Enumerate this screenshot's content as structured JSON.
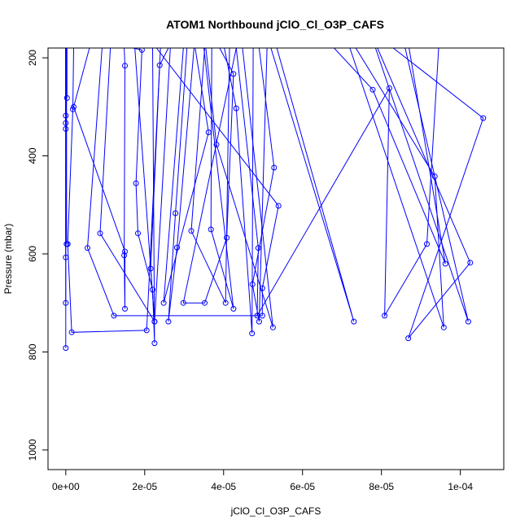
{
  "chart_data": {
    "type": "line",
    "title": "ATOM1 Northbound jClO_Cl_O3P_CAFS",
    "xlabel": "jClO_Cl_O3P_CAFS",
    "ylabel": "Pressure (mbar)",
    "xlim": [
      -4.5e-06,
      0.000111
    ],
    "ylim": [
      1040,
      180
    ],
    "y_reversed": true,
    "grid": false,
    "legend": "none",
    "line_color": "#0000ff",
    "x_ticks": [
      {
        "value": 0,
        "label": "0e+00"
      },
      {
        "value": 2e-05,
        "label": "2e-05"
      },
      {
        "value": 4e-05,
        "label": "4e-05"
      },
      {
        "value": 6e-05,
        "label": "6e-05"
      },
      {
        "value": 8e-05,
        "label": "8e-05"
      },
      {
        "value": 0.0001,
        "label": "1e-04"
      }
    ],
    "y_ticks": [
      {
        "value": 200,
        "label": "200"
      },
      {
        "value": 400,
        "label": "400"
      },
      {
        "value": 600,
        "label": "600"
      },
      {
        "value": 800,
        "label": "800"
      },
      {
        "value": 1000,
        "label": "1000"
      }
    ],
    "series": [
      {
        "points": [
          [
            0,
            180
          ],
          [
            0,
            792
          ]
        ]
      },
      {
        "points": [
          [
            0,
            180
          ],
          [
            0,
            700
          ]
        ]
      },
      {
        "points": [
          [
            0,
            180
          ],
          [
            0,
            607
          ]
        ]
      },
      {
        "points": [
          [
            2e-07,
            180
          ],
          [
            2e-07,
            580
          ]
        ]
      },
      {
        "points": [
          [
            3e-07,
            180
          ],
          [
            3e-07,
            282
          ]
        ]
      },
      {
        "points": [
          [
            0,
            180
          ],
          [
            0,
            318
          ]
        ]
      },
      {
        "points": [
          [
            0,
            180
          ],
          [
            0,
            333
          ]
        ]
      },
      {
        "points": [
          [
            0,
            180
          ],
          [
            0,
            345
          ]
        ]
      },
      {
        "points": [
          [
            2e-06,
            180
          ],
          [
            1.8e-06,
            305
          ],
          [
            5e-07,
            580
          ],
          [
            1.5e-06,
            760
          ],
          [
            2.05e-05,
            756
          ],
          [
            2.4e-05,
            180
          ]
        ]
      },
      {
        "points": [
          [
            9.2e-06,
            180
          ],
          [
            5.5e-06,
            588
          ],
          [
            1.22e-05,
            726
          ],
          [
            4.98e-05,
            726
          ],
          [
            4.98e-05,
            670
          ],
          [
            5.39e-05,
            502
          ],
          [
            2.3e-05,
            180
          ]
        ]
      },
      {
        "points": [
          [
            1.48e-05,
            180
          ],
          [
            1.5e-05,
            216
          ],
          [
            1.48e-05,
            603
          ],
          [
            1.5e-05,
            712
          ],
          [
            1.5e-05,
            595
          ],
          [
            2e-06,
            300
          ],
          [
            6e-06,
            180
          ]
        ]
      },
      {
        "points": [
          [
            1.7e-05,
            180
          ],
          [
            1.93e-05,
            184
          ],
          [
            1.78e-05,
            456
          ],
          [
            1.83e-05,
            558
          ],
          [
            2.2e-05,
            673
          ],
          [
            2.25e-05,
            782
          ],
          [
            2.2e-05,
            180
          ]
        ]
      },
      {
        "points": [
          [
            2.6e-05,
            180
          ],
          [
            2.38e-05,
            215
          ],
          [
            2.15e-05,
            630
          ],
          [
            2.25e-05,
            738
          ],
          [
            2.65e-05,
            180
          ]
        ]
      },
      {
        "points": [
          [
            1.13e-05,
            180
          ],
          [
            8.7e-06,
            558
          ],
          [
            2.25e-05,
            738
          ],
          [
            1.75e-05,
            180
          ]
        ]
      },
      {
        "points": [
          [
            3.07e-05,
            180
          ],
          [
            2.78e-05,
            517
          ],
          [
            2.6e-05,
            738
          ],
          [
            2.82e-05,
            587
          ],
          [
            3.25e-05,
            180
          ]
        ]
      },
      {
        "points": [
          [
            2.98e-05,
            180
          ],
          [
            2.48e-05,
            700
          ],
          [
            3.62e-05,
            352
          ],
          [
            3.28e-05,
            180
          ]
        ]
      },
      {
        "points": [
          [
            3.52e-05,
            180
          ],
          [
            3.18e-05,
            553
          ],
          [
            4.05e-05,
            700
          ],
          [
            4.15e-05,
            180
          ]
        ]
      },
      {
        "points": [
          [
            3.7e-05,
            180
          ],
          [
            3.68e-05,
            550
          ],
          [
            4.25e-05,
            712
          ],
          [
            3.5e-05,
            180
          ]
        ]
      },
      {
        "points": [
          [
            3.9e-05,
            180
          ],
          [
            4.25e-05,
            233
          ],
          [
            4.08e-05,
            567
          ],
          [
            3.52e-05,
            700
          ],
          [
            2.98e-05,
            700
          ],
          [
            4.32e-05,
            180
          ]
        ]
      },
      {
        "points": [
          [
            3.55e-05,
            180
          ],
          [
            3.82e-05,
            377
          ],
          [
            5.25e-05,
            750
          ],
          [
            4.48e-05,
            180
          ]
        ]
      },
      {
        "points": [
          [
            4.02e-05,
            180
          ],
          [
            4.32e-05,
            303
          ],
          [
            4.72e-05,
            762
          ],
          [
            4.75e-05,
            180
          ]
        ]
      },
      {
        "points": [
          [
            4.32e-05,
            180
          ],
          [
            4.88e-05,
            588
          ],
          [
            4.85e-05,
            726
          ],
          [
            8.2e-05,
            262
          ],
          [
            8.08e-05,
            726
          ],
          [
            9.15e-05,
            580
          ],
          [
            9.45e-05,
            180
          ]
        ]
      },
      {
        "points": [
          [
            4.9e-05,
            180
          ],
          [
            5.28e-05,
            424
          ],
          [
            4.73e-05,
            662
          ],
          [
            4.9e-05,
            738
          ],
          [
            5.1e-05,
            180
          ]
        ]
      },
      {
        "points": [
          [
            5.35e-05,
            180
          ],
          [
            7.3e-05,
            738
          ],
          [
            5.2e-05,
            180
          ]
        ]
      },
      {
        "points": [
          [
            6.8e-05,
            180
          ],
          [
            7.78e-05,
            265
          ],
          [
            9.62e-05,
            620
          ],
          [
            8.7e-05,
            180
          ]
        ]
      },
      {
        "points": [
          [
            7.35e-05,
            180
          ],
          [
            9.35e-05,
            442
          ],
          [
            9.58e-05,
            750
          ],
          [
            7.2e-05,
            180
          ]
        ]
      },
      {
        "points": [
          [
            7.9e-05,
            180
          ],
          [
            0.0001025,
            618
          ],
          [
            8.68e-05,
            772
          ],
          [
            0.0001058,
            323
          ],
          [
            8.3e-05,
            180
          ]
        ]
      },
      {
        "points": [
          [
            7.85e-05,
            180
          ],
          [
            0.000102,
            738
          ],
          [
            8.6e-05,
            180
          ]
        ]
      }
    ]
  }
}
